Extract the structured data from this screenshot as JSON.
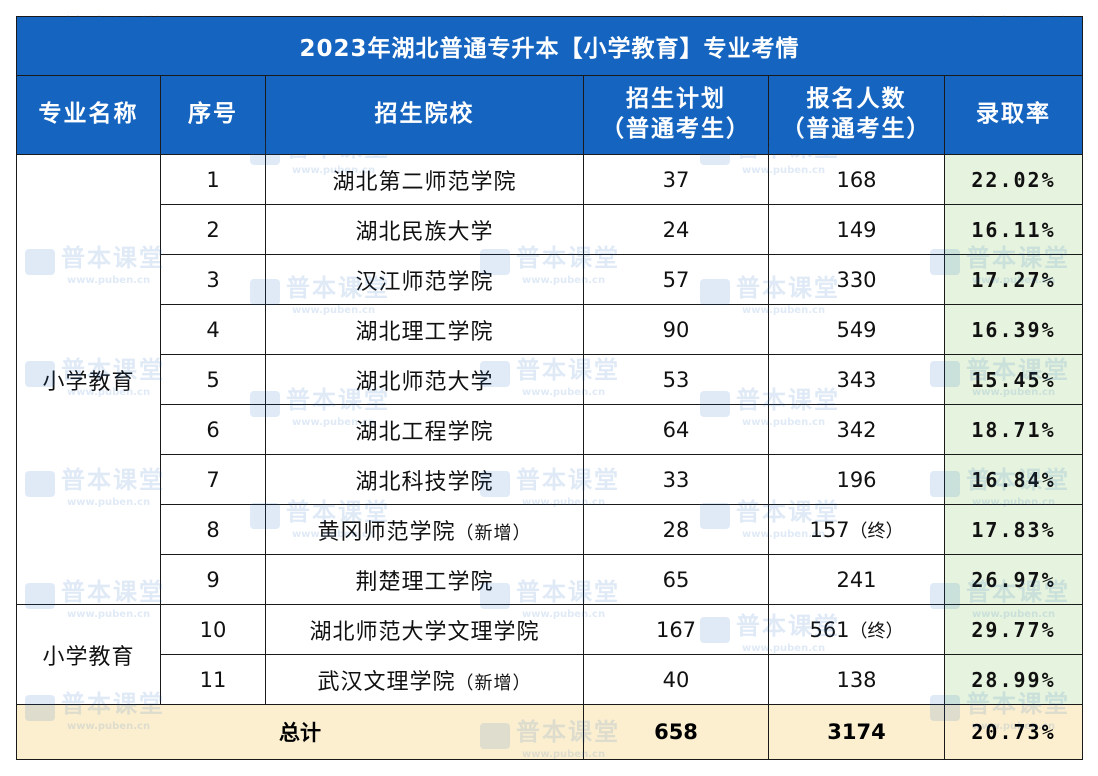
{
  "title": "2023年湖北普通专升本【小学教育】专业考情",
  "headers": {
    "major": "专业名称",
    "index": "序号",
    "school": "招生院校",
    "plan_line1": "招生计划",
    "plan_line2": "（普通考生）",
    "applicants_line1": "报名人数",
    "applicants_line2": "（普通考生）",
    "rate": "录取率"
  },
  "groups": [
    {
      "major": "小学教育"
    },
    {
      "major": "小学教育"
    }
  ],
  "rows": [
    {
      "index": "1",
      "school": "湖北第二师范学院",
      "plan": "37",
      "applicants": "168",
      "rate": "22.02%"
    },
    {
      "index": "2",
      "school": "湖北民族大学",
      "plan": "24",
      "applicants": "149",
      "rate": "16.11%"
    },
    {
      "index": "3",
      "school": "汉江师范学院",
      "plan": "57",
      "applicants": "330",
      "rate": "17.27%"
    },
    {
      "index": "4",
      "school": "湖北理工学院",
      "plan": "90",
      "applicants": "549",
      "rate": "16.39%"
    },
    {
      "index": "5",
      "school": "湖北师范大学",
      "plan": "53",
      "applicants": "343",
      "rate": "15.45%"
    },
    {
      "index": "6",
      "school": "湖北工程学院",
      "plan": "64",
      "applicants": "342",
      "rate": "18.71%"
    },
    {
      "index": "7",
      "school": "湖北科技学院",
      "plan": "33",
      "applicants": "196",
      "rate": "16.84%"
    },
    {
      "index": "8",
      "school": "黄冈师范学院",
      "school_note": "（新增）",
      "plan": "28",
      "applicants": "157",
      "applicants_note": "（终）",
      "rate": "17.83%"
    },
    {
      "index": "9",
      "school": "荆楚理工学院",
      "plan": "65",
      "applicants": "241",
      "rate": "26.97%"
    },
    {
      "index": "10",
      "school": "湖北师范大学文理学院",
      "plan": "167",
      "applicants": "561",
      "applicants_note": "（终）",
      "rate": "29.77%"
    },
    {
      "index": "11",
      "school": "武汉文理学院",
      "school_note": "（新增）",
      "plan": "40",
      "applicants": "138",
      "rate": "28.99%"
    }
  ],
  "total": {
    "label": "总计",
    "plan": "658",
    "applicants": "3174",
    "rate": "20.73%"
  },
  "watermark": {
    "brand": "普本课堂",
    "url": "www.puben.cn"
  },
  "colors": {
    "header_bg": "#1565c0",
    "rate_bg": "#e6f3de",
    "total_bg": "#fcefd0"
  }
}
